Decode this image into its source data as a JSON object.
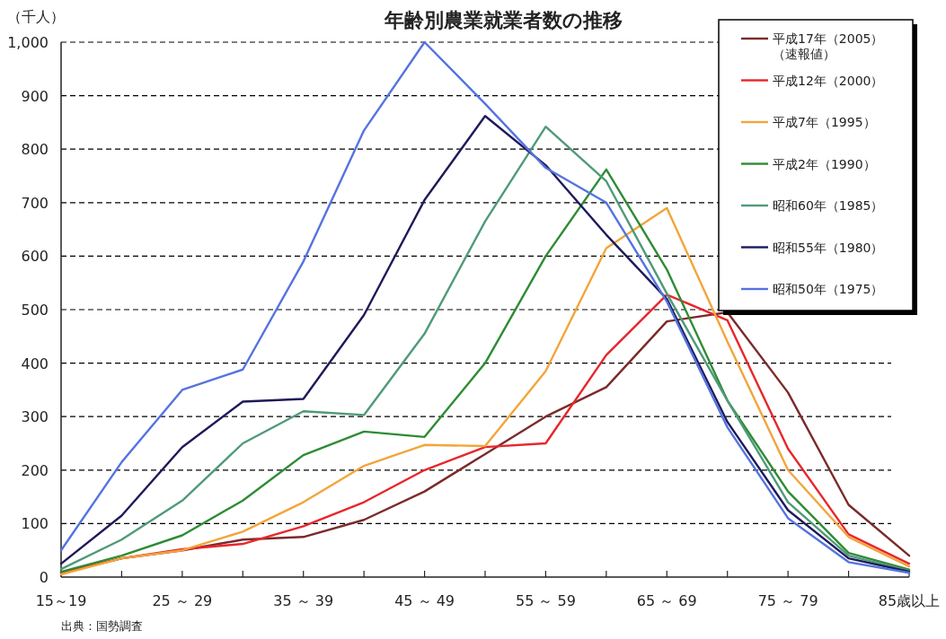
{
  "chart_data": {
    "type": "line",
    "title": "年齢別農業就業者数の推移",
    "ylabel": "（千人）",
    "annotations": [
      "出典：国勢調査"
    ],
    "categories": [
      "15～19",
      null,
      "25 ～ 29",
      null,
      "35 ～ 39",
      null,
      "45 ～ 49",
      null,
      "55 ～ 59",
      null,
      "65 ～ 69",
      null,
      "75 ～ 79",
      null,
      "85歳以上"
    ],
    "ylim": [
      0,
      1000
    ],
    "yticks": [
      0,
      100,
      200,
      300,
      400,
      500,
      600,
      700,
      800,
      900,
      {
        "value": 1000,
        "label": "1,000"
      }
    ],
    "grid": "y",
    "legend": "top right",
    "marker": "none",
    "line_style": "solid",
    "series": [
      {
        "name": "平成17年（2005）（速報値）",
        "color": "#7b2a2a",
        "values": [
          8,
          35,
          50,
          70,
          75,
          107,
          160,
          230,
          300,
          355,
          478,
          495,
          345,
          135,
          40
        ]
      },
      {
        "name": "平成12年（2000）",
        "color": "#e8262a",
        "values": [
          8,
          35,
          52,
          62,
          95,
          140,
          200,
          243,
          250,
          415,
          528,
          480,
          240,
          80,
          25
        ]
      },
      {
        "name": "平成7年（1995）",
        "color": "#f2a53a",
        "values": [
          5,
          35,
          50,
          85,
          140,
          208,
          247,
          245,
          385,
          615,
          690,
          440,
          200,
          75,
          20
        ]
      },
      {
        "name": "平成2年（1990）",
        "color": "#2e8b35",
        "values": [
          10,
          40,
          78,
          143,
          228,
          272,
          262,
          400,
          600,
          762,
          575,
          330,
          160,
          45,
          14
        ]
      },
      {
        "name": "昭和60年（1985）",
        "color": "#4f9a78",
        "values": [
          15,
          70,
          143,
          250,
          310,
          303,
          455,
          665,
          842,
          740,
          530,
          330,
          140,
          40,
          12
        ]
      },
      {
        "name": "昭和55年（1980）",
        "color": "#1e1a5a",
        "values": [
          25,
          115,
          243,
          328,
          333,
          490,
          705,
          862,
          770,
          640,
          520,
          290,
          125,
          35,
          10
        ]
      },
      {
        "name": "昭和50年（1975）",
        "color": "#5573e0",
        "values": [
          50,
          215,
          350,
          388,
          590,
          835,
          1000,
          885,
          765,
          700,
          515,
          280,
          110,
          28,
          8
        ]
      }
    ]
  }
}
